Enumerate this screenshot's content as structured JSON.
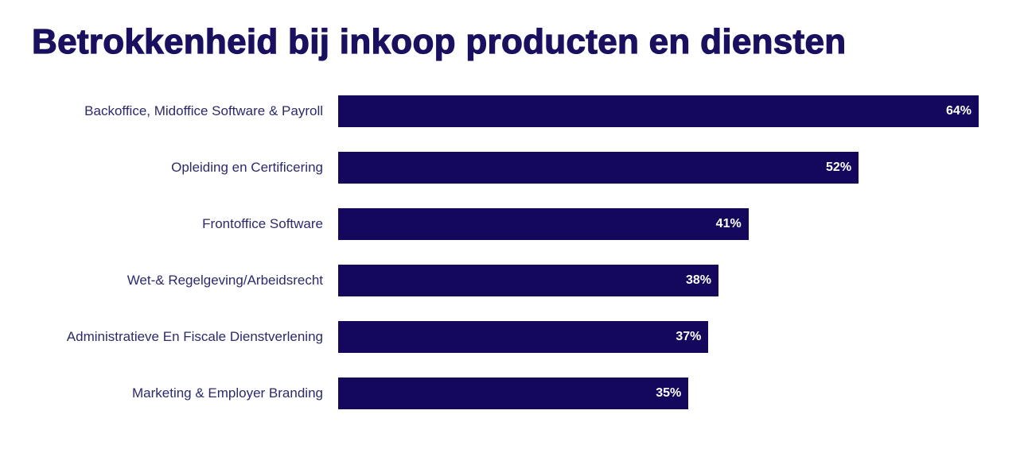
{
  "chart_data": {
    "type": "bar",
    "orientation": "horizontal",
    "title": "Betrokkenheid bij inkoop producten en diensten",
    "categories": [
      "Backoffice, Midoffice Software & Payroll",
      "Opleiding en Certificering",
      "Frontoffice Software",
      "Wet-& Regelgeving/Arbeidsrecht",
      "Administratieve En Fiscale Dienstverlening",
      "Marketing & Employer Branding"
    ],
    "values": [
      64,
      52,
      41,
      38,
      37,
      35
    ],
    "data_labels": [
      "64%",
      "52%",
      "41%",
      "38%",
      "37%",
      "35%"
    ],
    "unit": "%",
    "xlim": [
      0,
      64
    ],
    "grid": false,
    "colors": {
      "bar": "#13085c",
      "title": "#1a1060",
      "label": "#2b2a6b",
      "data_label": "#ffffff"
    }
  }
}
